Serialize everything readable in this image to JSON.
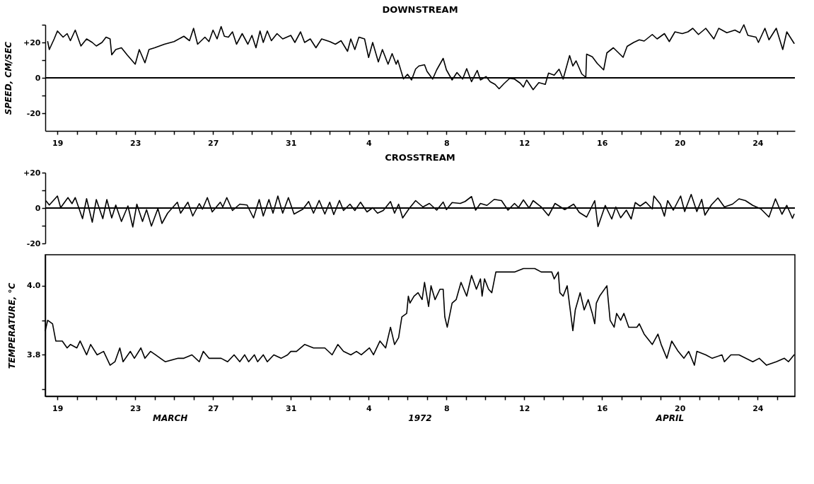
{
  "chart_data": [
    {
      "type": "line",
      "title": "DOWNSTREAM",
      "ylabel": "SPEED, CM/SEC",
      "color": "#000000",
      "xlim": [
        "1972-03-18T09:00",
        "1972-04-25T22:00"
      ],
      "ylim": [
        -30,
        30
      ],
      "yticks": [
        -20,
        {
          "value": -10,
          "label": null
        },
        0,
        {
          "value": 10,
          "label": null
        },
        {
          "value": 20,
          "label": "+20"
        },
        {
          "value": 30,
          "label": null
        }
      ],
      "xticks": [
        {
          "value": "1972-03-19",
          "label": "19"
        },
        {
          "value": "1972-03-20",
          "label": null
        },
        {
          "value": "1972-03-21",
          "label": null
        },
        {
          "value": "1972-03-22",
          "label": null
        },
        {
          "value": "1972-03-23",
          "label": "23"
        },
        {
          "value": "1972-03-24",
          "label": null
        },
        {
          "value": "1972-03-25",
          "label": null
        },
        {
          "value": "1972-03-26",
          "label": null
        },
        {
          "value": "1972-03-27",
          "label": "27"
        },
        {
          "value": "1972-03-28",
          "label": null
        },
        {
          "value": "1972-03-29",
          "label": null
        },
        {
          "value": "1972-03-30",
          "label": null
        },
        {
          "value": "1972-03-31",
          "label": "31"
        },
        {
          "value": "1972-04-01",
          "label": null
        },
        {
          "value": "1972-04-02",
          "label": null
        },
        {
          "value": "1972-04-03",
          "label": null
        },
        {
          "value": "1972-04-04",
          "label": "4"
        },
        {
          "value": "1972-04-05",
          "label": null
        },
        {
          "value": "1972-04-06",
          "label": null
        },
        {
          "value": "1972-04-07",
          "label": null
        },
        {
          "value": "1972-04-08",
          "label": "8"
        },
        {
          "value": "1972-04-09",
          "label": null
        },
        {
          "value": "1972-04-10",
          "label": null
        },
        {
          "value": "1972-04-11",
          "label": null
        },
        {
          "value": "1972-04-12",
          "label": "12"
        },
        {
          "value": "1972-04-13",
          "label": null
        },
        {
          "value": "1972-04-14",
          "label": null
        },
        {
          "value": "1972-04-15",
          "label": null
        },
        {
          "value": "1972-04-16",
          "label": "16"
        },
        {
          "value": "1972-04-17",
          "label": null
        },
        {
          "value": "1972-04-18",
          "label": null
        },
        {
          "value": "1972-04-19",
          "label": null
        },
        {
          "value": "1972-04-20",
          "label": "20"
        },
        {
          "value": "1972-04-21",
          "label": null
        },
        {
          "value": "1972-04-22",
          "label": null
        },
        {
          "value": "1972-04-23",
          "label": null
        },
        {
          "value": "1972-04-24",
          "label": "24"
        },
        {
          "value": "1972-04-25",
          "label": null
        }
      ],
      "ref_lines": [
        {
          "axis": "y",
          "value": 0,
          "color": "#000000"
        }
      ],
      "x": [
        "1972-03-18T12:00",
        "1972-03-18T14:00",
        "1972-03-18T20:00",
        "1972-03-19T00:00",
        "1972-03-19T07:00",
        "1972-03-19T12:00",
        "1972-03-19T16:00",
        "1972-03-19T22:00",
        "1972-03-20T05:00",
        "1972-03-20T12:00",
        "1972-03-20T19:00",
        "1972-03-21T00:00",
        "1972-03-21T07:00",
        "1972-03-21T12:00",
        "1972-03-21T17:00",
        "1972-03-21T19:00",
        "1972-03-22T00:00",
        "1972-03-22T07:00",
        "1972-03-22T14:00",
        "1972-03-23T00:00",
        "1972-03-23T05:00",
        "1972-03-23T12:00",
        "1972-03-23T17:00",
        "1972-03-24T00:00",
        "1972-03-24T12:00",
        "1972-03-25T00:00",
        "1972-03-25T12:00",
        "1972-03-25T19:00",
        "1972-03-26T00:00",
        "1972-03-26T05:00",
        "1972-03-26T14:00",
        "1972-03-26T19:00",
        "1972-03-27T00:00",
        "1972-03-27T05:00",
        "1972-03-27T10:00",
        "1972-03-27T14:00",
        "1972-03-27T19:00",
        "1972-03-28T00:00",
        "1972-03-28T05:00",
        "1972-03-28T12:00",
        "1972-03-28T19:00",
        "1972-03-29T00:00",
        "1972-03-29T05:00",
        "1972-03-29T10:00",
        "1972-03-29T14:00",
        "1972-03-29T19:00",
        "1972-03-30T00:00",
        "1972-03-30T07:00",
        "1972-03-30T14:00",
        "1972-03-31T00:00",
        "1972-03-31T05:00",
        "1972-03-31T12:00",
        "1972-03-31T17:00",
        "1972-04-01T00:00",
        "1972-04-01T07:00",
        "1972-04-01T14:00",
        "1972-04-02T00:00",
        "1972-04-02T07:00",
        "1972-04-02T14:00",
        "1972-04-02T22:00",
        "1972-04-03T02:00",
        "1972-04-03T07:00",
        "1972-04-03T12:00",
        "1972-04-03T19:00",
        "1972-04-04T00:00",
        "1972-04-04T05:00",
        "1972-04-04T12:00",
        "1972-04-04T17:00",
        "1972-04-05T00:00",
        "1972-04-05T05:00",
        "1972-04-05T10:00",
        "1972-04-05T12:00",
        "1972-04-05T17:00",
        "1972-04-05T19:00",
        "1972-04-06T00:00",
        "1972-04-06T05:00",
        "1972-04-06T10:00",
        "1972-04-06T14:00",
        "1972-04-06T21:00",
        "1972-04-07T00:00",
        "1972-04-07T07:00",
        "1972-04-07T12:00",
        "1972-04-07T20:00",
        "1972-04-08T00:00",
        "1972-04-08T07:00",
        "1972-04-08T13:00",
        "1972-04-08T20:00",
        "1972-04-09T01:00",
        "1972-04-09T07:00",
        "1972-04-09T14:00",
        "1972-04-09T18:00",
        "1972-04-10T01:00",
        "1972-04-10T06:00",
        "1972-04-10T12:00",
        "1972-04-10T17:00",
        "1972-04-10T23:00",
        "1972-04-11T06:00",
        "1972-04-11T12:00",
        "1972-04-11T19:00",
        "1972-04-11T23:00",
        "1972-04-12T03:00",
        "1972-04-12T11:00",
        "1972-04-12T18:00",
        "1972-04-13T02:00",
        "1972-04-13T06:00",
        "1972-04-13T13:00",
        "1972-04-13T19:00",
        "1972-04-14T00:00",
        "1972-04-14T08:00",
        "1972-04-14T12:00",
        "1972-04-14T16:00",
        "1972-04-14T23:00",
        "1972-04-15T04:00",
        "1972-04-15T05:00",
        "1972-04-15T12:00",
        "1972-04-15T18:00",
        "1972-04-16T02:00",
        "1972-04-16T06:00",
        "1972-04-16T14:00",
        "1972-04-16T22:00",
        "1972-04-17T02:00",
        "1972-04-17T07:00",
        "1972-04-17T15:00",
        "1972-04-17T22:00",
        "1972-04-18T04:00",
        "1972-04-18T14:00",
        "1972-04-18T20:00",
        "1972-04-19T05:00",
        "1972-04-19T11:00",
        "1972-04-19T18:00",
        "1972-04-20T03:00",
        "1972-04-20T10:00",
        "1972-04-20T16:00",
        "1972-04-20T23:00",
        "1972-04-21T08:00",
        "1972-04-21T18:00",
        "1972-04-22T00:00",
        "1972-04-22T10:00",
        "1972-04-22T20:00",
        "1972-04-23T02:00",
        "1972-04-23T07:00",
        "1972-04-23T12:00",
        "1972-04-23T22:00",
        "1972-04-24T01:00",
        "1972-04-24T09:00",
        "1972-04-24T14:00",
        "1972-04-24T23:00",
        "1972-04-25T07:00",
        "1972-04-25T12:00",
        "1972-04-25T21:00"
      ],
      "values": [
        20.5,
        16,
        22,
        26.5,
        23,
        25,
        21,
        27,
        18,
        22,
        20,
        18,
        20,
        23,
        22,
        13,
        16,
        17,
        13,
        7.7,
        16,
        8.5,
        16,
        17,
        19,
        20.5,
        23.5,
        21,
        28,
        19,
        23,
        20.5,
        27,
        22,
        29,
        23.5,
        23,
        26,
        19,
        25,
        19,
        24,
        17,
        26.5,
        20,
        26.5,
        21,
        25,
        22,
        24,
        20,
        26,
        20,
        22,
        17,
        22,
        20.5,
        19,
        21,
        15,
        22,
        16,
        23,
        22,
        11.5,
        20,
        9,
        16,
        7.7,
        13.7,
        7.7,
        10,
        2.4,
        -0.6,
        2,
        -1.2,
        5,
        6.7,
        7.4,
        3.7,
        -0.7,
        4.5,
        11,
        4.5,
        -1.2,
        3,
        -0.7,
        5.2,
        -2.2,
        4.2,
        -1.2,
        0.7,
        -2.2,
        -3.7,
        -6.2,
        -3.3,
        -0.3,
        -0.7,
        -3,
        -5.2,
        -1.2,
        -6.7,
        -2.7,
        -3.7,
        2.7,
        1.5,
        4.9,
        -0.7,
        12.6,
        6.7,
        9.6,
        2.2,
        0.3,
        13.4,
        11.9,
        8.2,
        4.5,
        14.1,
        17,
        13.4,
        11.6,
        17.8,
        20,
        21.5,
        20.8,
        24.5,
        22,
        25,
        20.5,
        26,
        25,
        26,
        28,
        24.5,
        28,
        22,
        28,
        25.5,
        27,
        25.5,
        30,
        24,
        23,
        20,
        28,
        21.5,
        28,
        16,
        26,
        19.5
      ]
    },
    {
      "type": "line",
      "title": "CROSSTREAM",
      "color": "#000000",
      "tick_labels": "y",
      "xlim": [
        "1972-03-18T09:00",
        "1972-04-25T22:00"
      ],
      "ylim": [
        -20,
        20
      ],
      "yticks": [
        -20,
        {
          "value": -10,
          "label": null
        },
        0,
        {
          "value": 10,
          "label": null
        },
        {
          "value": 20,
          "label": "+20"
        }
      ],
      "ref_lines": [
        {
          "axis": "y",
          "value": 0,
          "color": "#000000"
        }
      ],
      "x": [
        "1972-03-18T10:00",
        "1972-03-18T14:00",
        "1972-03-19T00:00",
        "1972-03-19T04:00",
        "1972-03-19T13:00",
        "1972-03-19T18:00",
        "1972-03-19T22:00",
        "1972-03-20T07:00",
        "1972-03-20T12:00",
        "1972-03-20T19:00",
        "1972-03-21T00:00",
        "1972-03-21T08:00",
        "1972-03-21T13:00",
        "1972-03-21T19:00",
        "1972-03-22T00:00",
        "1972-03-22T07:00",
        "1972-03-22T15:00",
        "1972-03-22T21:00",
        "1972-03-23T02:00",
        "1972-03-23T09:00",
        "1972-03-23T14:00",
        "1972-03-23T20:00",
        "1972-03-24T04:00",
        "1972-03-24T09:00",
        "1972-03-24T16:00",
        "1972-03-25T04:00",
        "1972-03-25T08:00",
        "1972-03-25T17:00",
        "1972-03-25T23:00",
        "1972-03-26T07:00",
        "1972-03-26T11:00",
        "1972-03-26T17:00",
        "1972-03-26T23:00",
        "1972-03-27T09:00",
        "1972-03-27T12:00",
        "1972-03-27T17:00",
        "1972-03-28T00:00",
        "1972-03-28T09:00",
        "1972-03-28T18:00",
        "1972-03-29T02:00",
        "1972-03-29T09:00",
        "1972-03-29T14:00",
        "1972-03-29T21:00",
        "1972-03-30T02:00",
        "1972-03-30T08:00",
        "1972-03-30T14:00",
        "1972-03-30T21:00",
        "1972-03-31T04:00",
        "1972-03-31T15:00",
        "1972-03-31T22:00",
        "1972-04-01T04:00",
        "1972-04-01T11:00",
        "1972-04-01T18:00",
        "1972-04-02T00:00",
        "1972-04-02T05:00",
        "1972-04-02T12:00",
        "1972-04-02T17:00",
        "1972-04-03T01:00",
        "1972-04-03T07:00",
        "1972-04-03T14:00",
        "1972-04-03T22:00",
        "1972-04-04T05:00",
        "1972-04-04T11:00",
        "1972-04-04T18:00",
        "1972-04-05T03:00",
        "1972-04-05T08:00",
        "1972-04-05T13:00",
        "1972-04-05T18:00",
        "1972-04-06T02:00",
        "1972-04-06T10:00",
        "1972-04-06T19:00",
        "1972-04-07T03:00",
        "1972-04-07T12:00",
        "1972-04-07T20:00",
        "1972-04-08T00:00",
        "1972-04-08T07:00",
        "1972-04-08T17:00",
        "1972-04-08T23:00",
        "1972-04-09T07:00",
        "1972-04-09T12:00",
        "1972-04-09T18:00",
        "1972-04-10T02:00",
        "1972-04-10T11:00",
        "1972-04-10T20:00",
        "1972-04-11T04:00",
        "1972-04-11T12:00",
        "1972-04-11T17:00",
        "1972-04-11T23:00",
        "1972-04-12T06:00",
        "1972-04-12T11:00",
        "1972-04-12T21:00",
        "1972-04-13T06:00",
        "1972-04-13T14:00",
        "1972-04-14T02:00",
        "1972-04-14T13:00",
        "1972-04-14T20:00",
        "1972-04-15T05:00",
        "1972-04-15T15:00",
        "1972-04-15T19:00",
        "1972-04-16T04:00",
        "1972-04-16T12:00",
        "1972-04-16T17:00",
        "1972-04-16T23:00",
        "1972-04-17T06:00",
        "1972-04-17T12:00",
        "1972-04-17T17:00",
        "1972-04-17T23:00",
        "1972-04-18T06:00",
        "1972-04-18T14:00",
        "1972-04-18T16:00",
        "1972-04-19T00:00",
        "1972-04-19T05:00",
        "1972-04-19T09:00",
        "1972-04-19T16:00",
        "1972-04-20T01:00",
        "1972-04-20T06:00",
        "1972-04-20T14:00",
        "1972-04-20T21:00",
        "1972-04-21T03:00",
        "1972-04-21T07:00",
        "1972-04-21T15:00",
        "1972-04-21T23:00",
        "1972-04-22T07:00",
        "1972-04-22T17:00",
        "1972-04-23T01:00",
        "1972-04-23T09:00",
        "1972-04-23T18:00",
        "1972-04-24T04:00",
        "1972-04-24T14:00",
        "1972-04-24T22:00",
        "1972-04-25T06:00",
        "1972-04-25T12:00",
        "1972-04-25T19:00",
        "1972-04-25T21:00"
      ],
      "values": [
        4,
        1.7,
        6.8,
        0.2,
        5.9,
        2.5,
        5.9,
        -6,
        5.3,
        -8,
        4.8,
        -6,
        4.8,
        -5.6,
        1.7,
        -7.6,
        1.2,
        -10.7,
        2.2,
        -7.6,
        -0.9,
        -10.2,
        -0.3,
        -8.7,
        -2.9,
        3.3,
        -2.9,
        3.3,
        -4.5,
        2.5,
        -0.6,
        5.9,
        -2.2,
        3.3,
        0.6,
        5.9,
        -1.4,
        2.2,
        1.7,
        -5.6,
        4.8,
        -4.5,
        4.8,
        -2.9,
        6.8,
        -2.9,
        5.9,
        -3.4,
        -0.6,
        3.7,
        -2.9,
        4.3,
        -3.4,
        3.3,
        -3.7,
        4.3,
        -1.4,
        2.2,
        -1.4,
        3.3,
        -2.2,
        0.2,
        -2.9,
        -1.4,
        3.7,
        -2.9,
        2.2,
        -5.6,
        -0.3,
        4.2,
        0.6,
        2.6,
        -1.2,
        3.4,
        -0.9,
        3.1,
        2.6,
        3.7,
        6.5,
        -1.2,
        2.6,
        1.5,
        4.9,
        4.2,
        -1.2,
        2.6,
        0.3,
        4.6,
        0,
        4.2,
        0.6,
        -4.3,
        2.6,
        -0.9,
        2.2,
        -2.5,
        -5.1,
        4.2,
        -10.5,
        1.5,
        -6.2,
        0.6,
        -5.5,
        -1.2,
        -6.2,
        3.1,
        1.1,
        3.4,
        -0.5,
        6.8,
        2.2,
        -4.6,
        4.2,
        -1.2,
        6.8,
        -2,
        7.7,
        -2,
        4.9,
        -4,
        1.8,
        5.7,
        0.6,
        2.2,
        5.2,
        4.2,
        1.5,
        -0.5,
        -5.1,
        5.2,
        -3.5,
        1.5,
        -5.8,
        -3.5
      ]
    },
    {
      "type": "line",
      "ylabel": "TEMPERATURE, °C",
      "color": "#000000",
      "xlim": [
        "1972-03-18T09:00",
        "1972-04-25T22:00"
      ],
      "ylim": [
        3.68,
        4.09
      ],
      "yticks": [
        {
          "value": 3.7,
          "label": null
        },
        3.8,
        {
          "value": 3.9,
          "label": null
        },
        {
          "value": 4.0,
          "label": "4.0"
        }
      ],
      "xticks": [
        {
          "value": "1972-03-19",
          "label": "19"
        },
        {
          "value": "1972-03-20",
          "label": null
        },
        {
          "value": "1972-03-21",
          "label": null
        },
        {
          "value": "1972-03-22",
          "label": null
        },
        {
          "value": "1972-03-23",
          "label": "23"
        },
        {
          "value": "1972-03-24",
          "label": null
        },
        {
          "value": "1972-03-25",
          "label": null
        },
        {
          "value": "1972-03-26",
          "label": null
        },
        {
          "value": "1972-03-27",
          "label": "27"
        },
        {
          "value": "1972-03-28",
          "label": null
        },
        {
          "value": "1972-03-29",
          "label": null
        },
        {
          "value": "1972-03-30",
          "label": null
        },
        {
          "value": "1972-03-31",
          "label": "31"
        },
        {
          "value": "1972-04-01",
          "label": null
        },
        {
          "value": "1972-04-02",
          "label": null
        },
        {
          "value": "1972-04-03",
          "label": null
        },
        {
          "value": "1972-04-04",
          "label": "4"
        },
        {
          "value": "1972-04-05",
          "label": null
        },
        {
          "value": "1972-04-06",
          "label": null
        },
        {
          "value": "1972-04-07",
          "label": null
        },
        {
          "value": "1972-04-08",
          "label": "8"
        },
        {
          "value": "1972-04-09",
          "label": null
        },
        {
          "value": "1972-04-10",
          "label": null
        },
        {
          "value": "1972-04-11",
          "label": null
        },
        {
          "value": "1972-04-12",
          "label": "12"
        },
        {
          "value": "1972-04-13",
          "label": null
        },
        {
          "value": "1972-04-14",
          "label": null
        },
        {
          "value": "1972-04-15",
          "label": null
        },
        {
          "value": "1972-04-16",
          "label": "16"
        },
        {
          "value": "1972-04-17",
          "label": null
        },
        {
          "value": "1972-04-18",
          "label": null
        },
        {
          "value": "1972-04-19",
          "label": null
        },
        {
          "value": "1972-04-20",
          "label": "20"
        },
        {
          "value": "1972-04-21",
          "label": null
        },
        {
          "value": "1972-04-22",
          "label": null
        },
        {
          "value": "1972-04-23",
          "label": null
        },
        {
          "value": "1972-04-24",
          "label": "24"
        },
        {
          "value": "1972-04-25",
          "label": null
        }
      ],
      "annotations": [
        "MARCH",
        "1972",
        "APRIL"
      ],
      "x": [
        "1972-03-18T09:00",
        "1972-03-18T12:00",
        "1972-03-18T18:00",
        "1972-03-18T22:00",
        "1972-03-19T06:00",
        "1972-03-19T12:00",
        "1972-03-19T16:00",
        "1972-03-20T00:00",
        "1972-03-20T04:00",
        "1972-03-20T12:00",
        "1972-03-20T17:00",
        "1972-03-21T01:00",
        "1972-03-21T09:00",
        "1972-03-21T17:00",
        "1972-03-21T23:00",
        "1972-03-22T05:00",
        "1972-03-22T09:00",
        "1972-03-22T18:00",
        "1972-03-22T23:00",
        "1972-03-23T07:00",
        "1972-03-23T12:00",
        "1972-03-23T19:00",
        "1972-03-24T01:00",
        "1972-03-24T13:00",
        "1972-03-25T05:00",
        "1972-03-25T12:00",
        "1972-03-25T22:00",
        "1972-03-26T07:00",
        "1972-03-26T12:00",
        "1972-03-26T19:00",
        "1972-03-27T10:00",
        "1972-03-27T18:00",
        "1972-03-28T02:00",
        "1972-03-28T09:00",
        "1972-03-28T15:00",
        "1972-03-28T20:00",
        "1972-03-29T03:00",
        "1972-03-29T07:00",
        "1972-03-29T14:00",
        "1972-03-29T19:00",
        "1972-03-30T03:00",
        "1972-03-30T12:00",
        "1972-03-30T20:00",
        "1972-03-31T00:00",
        "1972-03-31T07:00",
        "1972-03-31T17:00",
        "1972-04-01T04:00",
        "1972-04-01T18:00",
        "1972-04-02T03:00",
        "1972-04-02T10:00",
        "1972-04-02T17:00",
        "1972-04-03T02:00",
        "1972-04-03T09:00",
        "1972-04-03T15:00",
        "1972-04-04T01:00",
        "1972-04-04T06:00",
        "1972-04-04T14:00",
        "1972-04-04T21:00",
        "1972-04-05T03:00",
        "1972-04-05T08:00",
        "1972-04-05T13:00",
        "1972-04-05T17:00",
        "1972-04-05T23:00",
        "1972-04-06T01:00",
        "1972-04-06T03:00",
        "1972-04-06T08:00",
        "1972-04-06T13:00",
        "1972-04-06T18:00",
        "1972-04-06T21:00",
        "1972-04-07T02:00",
        "1972-04-07T05:00",
        "1972-04-07T10:00",
        "1972-04-07T16:00",
        "1972-04-07T20:00",
        "1972-04-07T22:00",
        "1972-04-08T01:00",
        "1972-04-08T07:00",
        "1972-04-08T12:00",
        "1972-04-08T18:00",
        "1972-04-09T01:00",
        "1972-04-09T07:00",
        "1972-04-09T13:00",
        "1972-04-09T18:00",
        "1972-04-09T20:00",
        "1972-04-09T23:00",
        "1972-04-10T04:00",
        "1972-04-10T08:00",
        "1972-04-10T13:00",
        "1972-04-11T06:00",
        "1972-04-11T12:00",
        "1972-04-11T23:00",
        "1972-04-12T13:00",
        "1972-04-12T21:00",
        "1972-04-13T10:00",
        "1972-04-13T13:00",
        "1972-04-13T18:00",
        "1972-04-13T20:00",
        "1972-04-14T00:00",
        "1972-04-14T05:00",
        "1972-04-14T12:00",
        "1972-04-14T15:00",
        "1972-04-14T21:00",
        "1972-04-15T02:00",
        "1972-04-15T07:00",
        "1972-04-15T12:00",
        "1972-04-15T15:00",
        "1972-04-15T17:00",
        "1972-04-15T21:00",
        "1972-04-16T06:00",
        "1972-04-16T10:00",
        "1972-04-16T15:00",
        "1972-04-16T18:00",
        "1972-04-16T23:00",
        "1972-04-17T03:00",
        "1972-04-17T09:00",
        "1972-04-17T19:00",
        "1972-04-17T22:00",
        "1972-04-18T04:00",
        "1972-04-18T14:00",
        "1972-04-18T21:00",
        "1972-04-19T01:00",
        "1972-04-19T08:00",
        "1972-04-19T14:00",
        "1972-04-19T22:00",
        "1972-04-20T05:00",
        "1972-04-20T11:00",
        "1972-04-20T18:00",
        "1972-04-20T21:00",
        "1972-04-21T08:00",
        "1972-04-21T16:00",
        "1972-04-22T04:00",
        "1972-04-22T07:00",
        "1972-04-22T15:00",
        "1972-04-23T01:00",
        "1972-04-23T18:00",
        "1972-04-24T02:00",
        "1972-04-24T11:00",
        "1972-04-24T23:00",
        "1972-04-25T09:00",
        "1972-04-25T14:00",
        "1972-04-25T21:00"
      ],
      "values": [
        3.87,
        3.9,
        3.89,
        3.84,
        3.84,
        3.82,
        3.83,
        3.82,
        3.84,
        3.8,
        3.83,
        3.8,
        3.81,
        3.77,
        3.78,
        3.82,
        3.78,
        3.81,
        3.79,
        3.82,
        3.79,
        3.81,
        3.8,
        3.78,
        3.79,
        3.79,
        3.8,
        3.78,
        3.81,
        3.79,
        3.79,
        3.78,
        3.8,
        3.78,
        3.8,
        3.78,
        3.8,
        3.78,
        3.8,
        3.78,
        3.8,
        3.79,
        3.8,
        3.81,
        3.81,
        3.83,
        3.82,
        3.82,
        3.8,
        3.83,
        3.81,
        3.8,
        3.81,
        3.8,
        3.82,
        3.8,
        3.84,
        3.82,
        3.88,
        3.83,
        3.85,
        3.91,
        3.92,
        3.97,
        3.95,
        3.97,
        3.98,
        3.96,
        4.01,
        3.94,
        4.0,
        3.96,
        3.99,
        3.99,
        3.91,
        3.88,
        3.95,
        3.96,
        4.01,
        3.97,
        4.03,
        3.99,
        4.02,
        3.97,
        4.02,
        3.99,
        3.98,
        4.04,
        4.04,
        4.04,
        4.05,
        4.05,
        4.04,
        4.04,
        4.02,
        4.04,
        3.98,
        3.97,
        4.0,
        3.87,
        3.93,
        3.98,
        3.93,
        3.96,
        3.92,
        3.89,
        3.95,
        3.97,
        4.0,
        3.9,
        3.88,
        3.92,
        3.9,
        3.92,
        3.88,
        3.88,
        3.89,
        3.86,
        3.83,
        3.86,
        3.83,
        3.79,
        3.84,
        3.81,
        3.79,
        3.81,
        3.77,
        3.81,
        3.8,
        3.79,
        3.8,
        3.78,
        3.8,
        3.8,
        3.78,
        3.79,
        3.77,
        3.78,
        3.79,
        3.78,
        3.8
      ]
    }
  ]
}
